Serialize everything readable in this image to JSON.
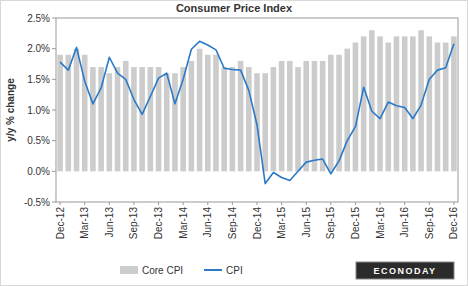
{
  "chart_data": {
    "type": "bar",
    "title": "Consumer Price Index",
    "y_label": "y/y % change",
    "logo": "ECONODAY",
    "categories": [
      "Dec-12",
      null,
      null,
      "Mar-13",
      null,
      null,
      "Jun-13",
      null,
      null,
      "Sep-13",
      null,
      null,
      "Dec-13",
      null,
      null,
      "Mar-14",
      null,
      null,
      "Jun-14",
      null,
      null,
      "Sep-14",
      null,
      null,
      "Dec-14",
      null,
      null,
      "Mar-15",
      null,
      null,
      "Jun-15",
      null,
      null,
      "Sep-15",
      null,
      null,
      "Dec-15",
      null,
      null,
      "Mar-16",
      null,
      null,
      "Jun-16",
      null,
      null,
      "Sep-16",
      null,
      null,
      "Dec-16"
    ],
    "series": [
      {
        "name": "Core CPI",
        "type": "bar",
        "color": "#cccccc",
        "values": [
          1.9,
          1.9,
          2.0,
          1.9,
          1.7,
          1.7,
          1.6,
          1.7,
          1.8,
          1.7,
          1.7,
          1.7,
          1.7,
          1.6,
          1.6,
          1.7,
          1.8,
          2.0,
          1.9,
          1.9,
          1.7,
          1.7,
          1.8,
          1.7,
          1.6,
          1.6,
          1.7,
          1.8,
          1.8,
          1.7,
          1.8,
          1.8,
          1.8,
          1.9,
          1.9,
          2.0,
          2.1,
          2.2,
          2.3,
          2.2,
          2.1,
          2.2,
          2.2,
          2.2,
          2.3,
          2.2,
          2.1,
          2.1,
          2.2
        ]
      },
      {
        "name": "CPI",
        "type": "line",
        "color": "#2a7ac8",
        "values": [
          1.78,
          1.65,
          2.02,
          1.47,
          1.1,
          1.36,
          1.86,
          1.6,
          1.5,
          1.17,
          0.93,
          1.22,
          1.52,
          1.6,
          1.1,
          1.5,
          1.99,
          2.12,
          2.06,
          1.98,
          1.68,
          1.66,
          1.65,
          1.32,
          0.76,
          -0.2,
          -0.02,
          -0.1,
          -0.15,
          0.0,
          0.15,
          0.18,
          0.2,
          -0.04,
          0.17,
          0.5,
          0.73,
          1.37,
          0.98,
          0.86,
          1.13,
          1.07,
          1.04,
          0.86,
          1.08,
          1.5,
          1.65,
          1.69,
          2.08
        ]
      }
    ],
    "ylim": [
      -0.5,
      2.5
    ],
    "yticks": [
      {
        "value": -0.5,
        "label": "-0.5%"
      },
      {
        "value": 0,
        "label": "0.0%"
      },
      {
        "value": 0.5,
        "label": "0.5%"
      },
      {
        "value": 1,
        "label": "1.0%"
      },
      {
        "value": 1.5,
        "label": "1.5%"
      },
      {
        "value": 2,
        "label": "2.0%"
      },
      {
        "value": 2.5,
        "label": "2.5%"
      }
    ],
    "grid": false,
    "legend": "bottom"
  }
}
